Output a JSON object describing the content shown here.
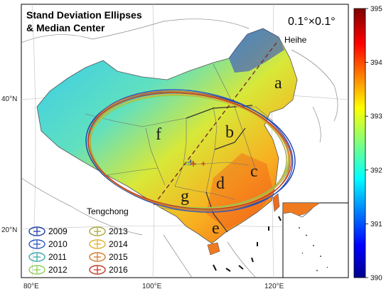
{
  "title_line1": "Stand Deviation Ellipses",
  "title_line2": "& Median Center",
  "resolution": "0.1°×0.1°",
  "axes": {
    "x_ticks": [
      "80°E",
      "100°E",
      "120°E"
    ],
    "y_ticks": [
      "40°N",
      "20°N"
    ]
  },
  "cities": {
    "north": "Heihe",
    "south": "Tengchong"
  },
  "regions": [
    "a",
    "b",
    "c",
    "d",
    "e",
    "f",
    "g"
  ],
  "legend": [
    {
      "year": "2009",
      "color": "#1f3fa8"
    },
    {
      "year": "2010",
      "color": "#2b55c0"
    },
    {
      "year": "2011",
      "color": "#3aa8a8"
    },
    {
      "year": "2012",
      "color": "#8cd055"
    },
    {
      "year": "2013",
      "color": "#a8a838"
    },
    {
      "year": "2014",
      "color": "#e0b030"
    },
    {
      "year": "2015",
      "color": "#d87828"
    },
    {
      "year": "2016",
      "color": "#c03828"
    }
  ],
  "colorbar": {
    "min": 390,
    "max": 395,
    "ticks": [
      "395",
      "394",
      "393",
      "392",
      "391",
      "390"
    ]
  }
}
